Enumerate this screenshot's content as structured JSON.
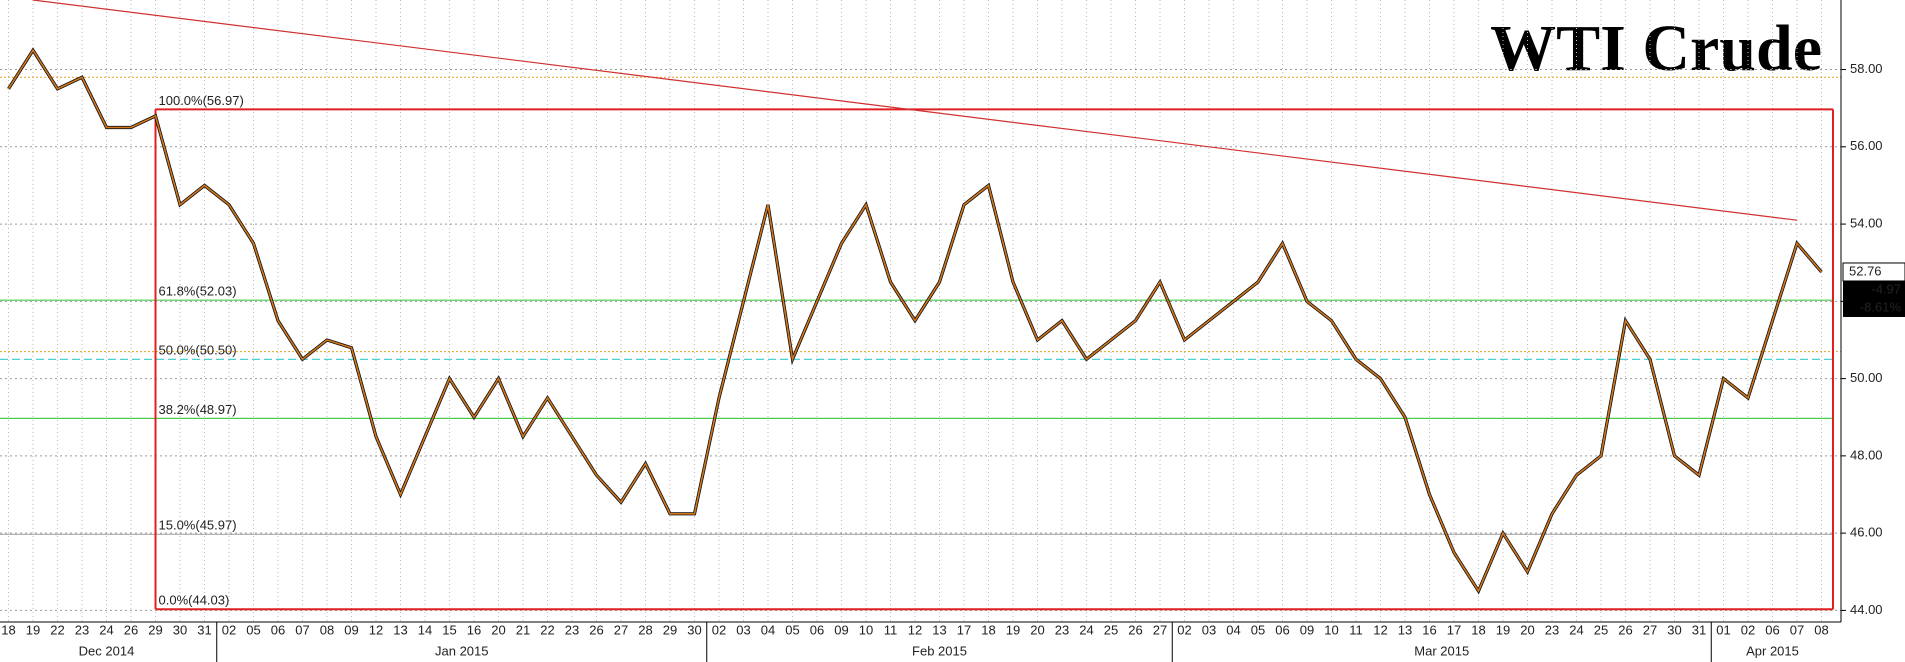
{
  "chart_data": {
    "type": "line",
    "title": "WTI Crude",
    "categories": [
      "18",
      "19",
      "22",
      "23",
      "24",
      "26",
      "29",
      "30",
      "31",
      "02",
      "05",
      "06",
      "07",
      "08",
      "09",
      "12",
      "13",
      "14",
      "15",
      "16",
      "20",
      "21",
      "22",
      "23",
      "26",
      "27",
      "28",
      "29",
      "30",
      "02",
      "03",
      "04",
      "05",
      "06",
      "09",
      "10",
      "11",
      "12",
      "13",
      "17",
      "18",
      "19",
      "20",
      "23",
      "24",
      "25",
      "26",
      "27",
      "02",
      "03",
      "04",
      "05",
      "06",
      "09",
      "10",
      "11",
      "12",
      "13",
      "16",
      "17",
      "18",
      "19",
      "20",
      "23",
      "24",
      "25",
      "26",
      "27",
      "30",
      "31",
      "01",
      "02",
      "06",
      "07",
      "08"
    ],
    "months": [
      "Dec 2014",
      "Jan 2015",
      "Feb 2015",
      "Mar 2015",
      "Apr 2015"
    ],
    "series": [
      {
        "color": "#d2761c",
        "values": [
          57.5,
          58.5,
          57.5,
          57.8,
          56.5,
          56.5,
          56.8,
          54.5,
          55.0,
          54.5,
          53.5,
          51.5,
          50.5,
          51.0,
          50.8,
          48.5,
          47.0,
          48.5,
          50.0,
          49.0,
          50.0,
          48.5,
          49.5,
          48.5,
          47.5,
          46.8,
          47.8,
          46.5,
          46.5,
          49.5,
          52.0,
          54.5,
          50.5,
          52.0,
          53.5,
          54.5,
          52.5,
          51.5,
          52.5,
          54.5,
          55.0,
          52.5,
          51.0,
          51.5,
          50.5,
          51.0,
          51.5,
          52.5,
          51.0,
          51.5,
          52.0,
          52.5,
          53.5,
          52.0,
          51.5,
          50.5,
          50.0,
          49.0,
          47.0,
          45.5,
          44.5,
          46.0,
          45.0,
          46.5,
          47.5,
          48.0,
          51.5,
          50.5,
          48.0,
          47.5,
          50.0,
          49.5,
          51.5,
          53.5,
          52.76
        ]
      }
    ],
    "ylim": [
      43.7,
      59.8
    ],
    "yticks": [
      {
        "value": 44,
        "label": "44.00"
      },
      {
        "value": 46,
        "label": "46.00"
      },
      {
        "value": 48,
        "label": "48.00"
      },
      {
        "value": 50,
        "label": "50.00"
      },
      {
        "value": 52,
        "label": "52.00"
      },
      {
        "value": 54,
        "label": "54.00"
      },
      {
        "value": 56,
        "label": "56.00"
      },
      {
        "value": 58,
        "label": "58.00"
      }
    ],
    "grid": true,
    "levels": [
      {
        "label": "100.0%(56.97)",
        "value": 56.97,
        "color": "#e02020"
      },
      {
        "label": "61.8%(52.03)",
        "value": 52.03,
        "color": "#4ccc4c"
      },
      {
        "label": "50.0%(50.50)",
        "value": 50.5,
        "color": "#33cccc"
      },
      {
        "label": "38.2%(48.97)",
        "value": 48.97,
        "color": "#4ccc4c"
      },
      {
        "label": "15.0%(45.97)",
        "value": 45.97,
        "color": "#aaaaaa"
      },
      {
        "label": "0.0%(44.03)",
        "value": 44.03,
        "color": "#e02020"
      }
    ],
    "reference_lines": [
      57.8,
      50.7
    ],
    "trendline": [
      59.8,
      54.1
    ],
    "last": {
      "price": {
        "value": 52.76,
        "label": "52.76"
      },
      "change": "-4.97",
      "pct": "-8.61%"
    }
  }
}
